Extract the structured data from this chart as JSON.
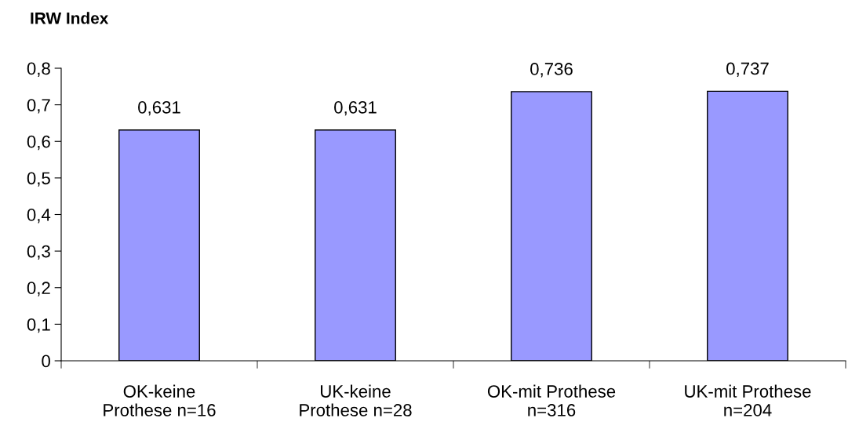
{
  "chart_data": {
    "type": "bar",
    "ylabel": "IRW Index",
    "categories": [
      "OK-keine\nProthese n=16",
      "UK-keine\nProthese n=28",
      "OK-mit Prothese\nn=316",
      "UK-mit Prothese\nn=204"
    ],
    "values": [
      0.631,
      0.631,
      0.736,
      0.737
    ],
    "value_labels": [
      "0,631",
      "0,631",
      "0,736",
      "0,737"
    ],
    "color": "#9999ff",
    "ylim": [
      0,
      0.8
    ],
    "yticks": [
      0,
      {
        "value": 0.1,
        "label": "0,1"
      },
      {
        "value": 0.2,
        "label": "0,2"
      },
      {
        "value": 0.3,
        "label": "0,3"
      },
      {
        "value": 0.4,
        "label": "0,4"
      },
      {
        "value": 0.5,
        "label": "0,5"
      },
      {
        "value": 0.6,
        "label": "0,6"
      },
      {
        "value": 0.7,
        "label": "0,7"
      },
      {
        "value": 0.8,
        "label": "0,8"
      }
    ],
    "grid": false,
    "legend": false
  }
}
